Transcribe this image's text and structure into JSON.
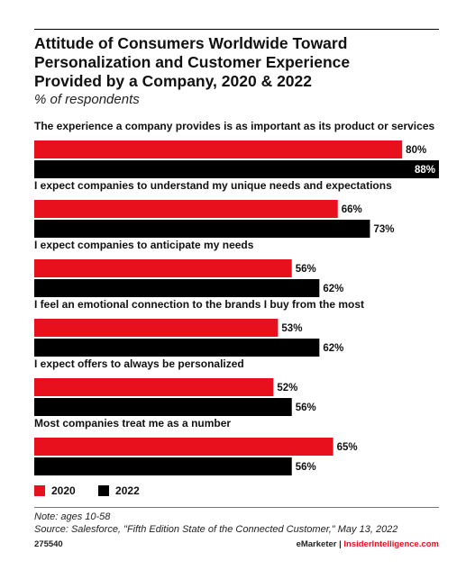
{
  "header": {
    "title_lines": [
      "Attitude of Consumers Worldwide Toward",
      "Personalization and Customer Experience",
      "Provided by a Company, 2020 & 2022"
    ],
    "subtitle": "% of respondents"
  },
  "chart_data": {
    "type": "bar",
    "orientation": "horizontal",
    "title": "Attitude of Consumers Worldwide Toward Personalization and Customer Experience Provided by a Company, 2020 & 2022",
    "subtitle": "% of respondents",
    "categories": [
      "The experience a company provides is as important as its product or services",
      "I expect companies to understand my unique needs and expectations",
      "I expect companies to anticipate my needs",
      "I feel an emotional connection to the brands I buy from the most",
      "I expect offers to always be personalized",
      "Most companies treat me as a number"
    ],
    "series": [
      {
        "name": "2020",
        "color": "#e8101d",
        "values": [
          80,
          66,
          56,
          53,
          52,
          65
        ]
      },
      {
        "name": "2022",
        "color": "#000000",
        "values": [
          88,
          73,
          62,
          62,
          56,
          56
        ]
      }
    ],
    "value_suffix": "%",
    "xlim": [
      0,
      88
    ],
    "legend_position": "bottom-left",
    "grid": false
  },
  "legend": {
    "items": [
      "2020",
      "2022"
    ]
  },
  "notes": {
    "note": "Note: ages 10-58",
    "source": "Source: Salesforce, \"Fifth Edition State of the Connected Customer,\" May 13, 2022"
  },
  "footer": {
    "chart_id": "275540",
    "brand_left": "eMarketer",
    "brand_sep": " | ",
    "brand_right": "InsiderIntelligence.com"
  },
  "colors": {
    "accent": "#e8101d",
    "dark": "#000000"
  }
}
